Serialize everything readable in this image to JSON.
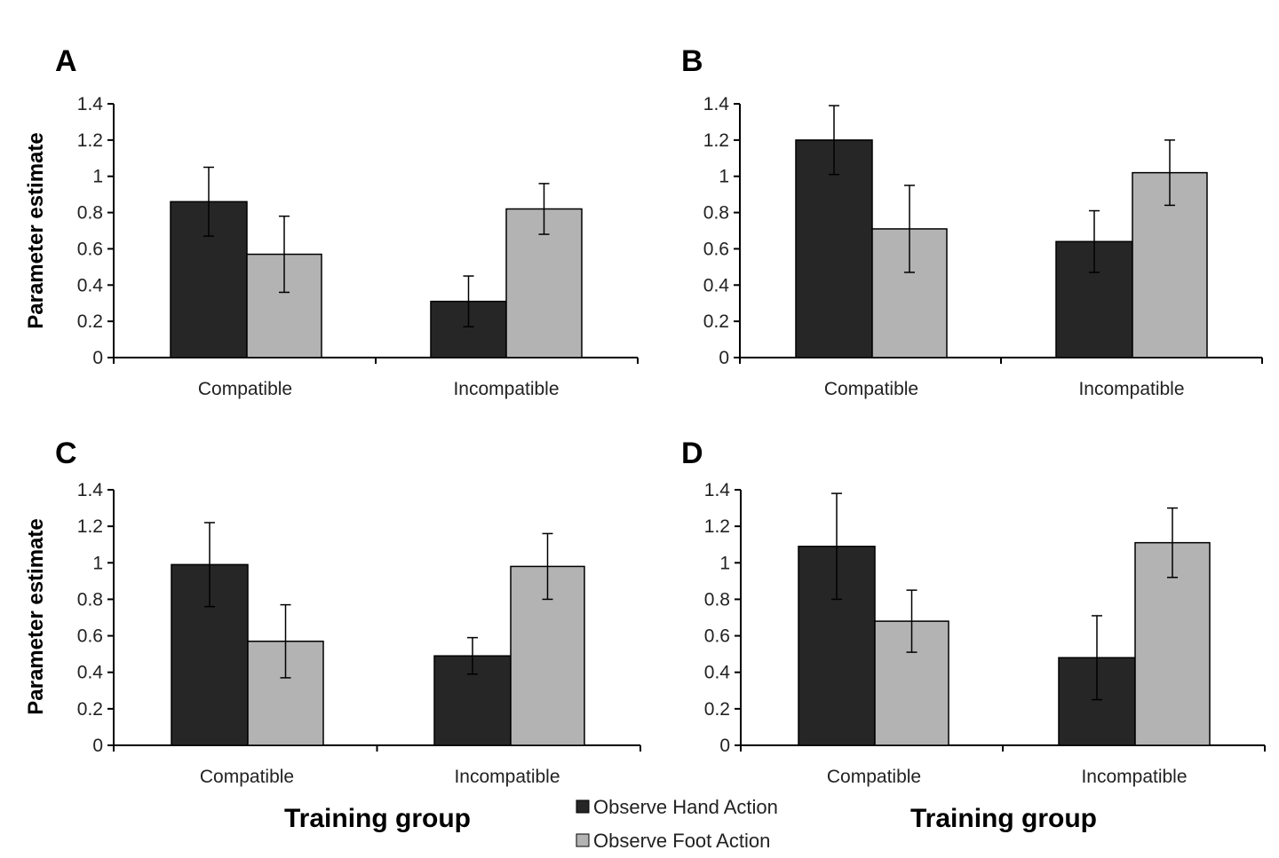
{
  "chart_data": [
    {
      "panel": "A",
      "type": "bar",
      "categories": [
        "Compatible",
        "Incompatible"
      ],
      "series": [
        {
          "name": "Observe Hand Action",
          "color": "#262626",
          "values": [
            0.86,
            0.31
          ],
          "errors": [
            0.19,
            0.14
          ]
        },
        {
          "name": "Observe Foot Action",
          "color": "#b3b3b3",
          "values": [
            0.57,
            0.82
          ],
          "errors": [
            0.21,
            0.14
          ]
        }
      ],
      "ylabel": "Parameter estimate",
      "xlabel": "",
      "ylim": [
        0,
        1.4
      ],
      "yticks": [
        "0",
        "0.2",
        "0.4",
        "0.6",
        "0.8",
        "1",
        "1.2",
        "1.4"
      ]
    },
    {
      "panel": "B",
      "type": "bar",
      "categories": [
        "Compatible",
        "Incompatible"
      ],
      "series": [
        {
          "name": "Observe Hand Action",
          "color": "#262626",
          "values": [
            1.2,
            0.64
          ],
          "errors": [
            0.19,
            0.17
          ]
        },
        {
          "name": "Observe Foot Action",
          "color": "#b3b3b3",
          "values": [
            0.71,
            1.02
          ],
          "errors": [
            0.24,
            0.18
          ]
        }
      ],
      "ylabel": "",
      "xlabel": "",
      "ylim": [
        0,
        1.4
      ],
      "yticks": [
        "0",
        "0.2",
        "0.4",
        "0.6",
        "0.8",
        "1",
        "1.2",
        "1.4"
      ]
    },
    {
      "panel": "C",
      "type": "bar",
      "categories": [
        "Compatible",
        "Incompatible"
      ],
      "series": [
        {
          "name": "Observe Hand Action",
          "color": "#262626",
          "values": [
            0.99,
            0.49
          ],
          "errors": [
            0.23,
            0.1
          ]
        },
        {
          "name": "Observe Foot Action",
          "color": "#b3b3b3",
          "values": [
            0.57,
            0.98
          ],
          "errors": [
            0.2,
            0.18
          ]
        }
      ],
      "ylabel": "Parameter estimate",
      "xlabel": "Training group",
      "ylim": [
        0,
        1.4
      ],
      "yticks": [
        "0",
        "0.2",
        "0.4",
        "0.6",
        "0.8",
        "1",
        "1.2",
        "1.4"
      ]
    },
    {
      "panel": "D",
      "type": "bar",
      "categories": [
        "Compatible",
        "Incompatible"
      ],
      "series": [
        {
          "name": "Observe Hand Action",
          "color": "#262626",
          "values": [
            1.09,
            0.48
          ],
          "errors": [
            0.29,
            0.23
          ]
        },
        {
          "name": "Observe Foot Action",
          "color": "#b3b3b3",
          "values": [
            0.68,
            1.11
          ],
          "errors": [
            0.17,
            0.19
          ]
        }
      ],
      "ylabel": "",
      "xlabel": "Training group",
      "ylim": [
        0,
        1.4
      ],
      "yticks": [
        "0",
        "0.2",
        "0.4",
        "0.6",
        "0.8",
        "1",
        "1.2",
        "1.4"
      ]
    }
  ],
  "legend": {
    "items": [
      {
        "label": "Observe Hand Action",
        "color": "#262626"
      },
      {
        "label": "Observe Foot Action",
        "color": "#b3b3b3"
      }
    ]
  }
}
